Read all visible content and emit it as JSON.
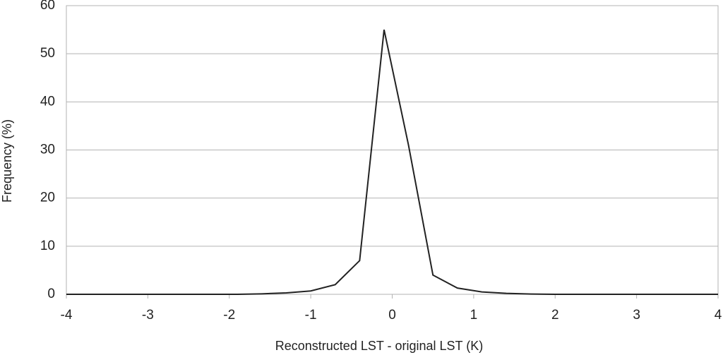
{
  "chart_data": {
    "type": "line",
    "x_label": "Reconstructed LST - original LST (K)",
    "y_label": "Frequency (%)",
    "x": [
      -4,
      -3.7,
      -3.4,
      -3.1,
      -2.8,
      -2.5,
      -2.2,
      -1.9,
      -1.6,
      -1.3,
      -1.0,
      -0.7,
      -0.4,
      -0.1,
      0.2,
      0.5,
      0.8,
      1.1,
      1.4,
      1.7,
      2.0,
      2.3,
      2.6,
      2.9,
      3.2,
      3.5,
      3.8,
      4.0
    ],
    "values": [
      0,
      0,
      0,
      0,
      0,
      0,
      0,
      0,
      0.1,
      0.3,
      0.7,
      2,
      7,
      55,
      31,
      4,
      1.3,
      0.5,
      0.2,
      0.05,
      0,
      0,
      0,
      0,
      0,
      0,
      0,
      0
    ],
    "color": "#222222",
    "xlim": [
      -4,
      4
    ],
    "xticks": [
      -4,
      -3,
      -2,
      -1,
      0,
      1,
      2,
      3,
      4
    ],
    "ylim": [
      0,
      60
    ],
    "yticks": [
      0,
      10,
      20,
      30,
      40,
      50,
      60
    ],
    "grid": true
  }
}
